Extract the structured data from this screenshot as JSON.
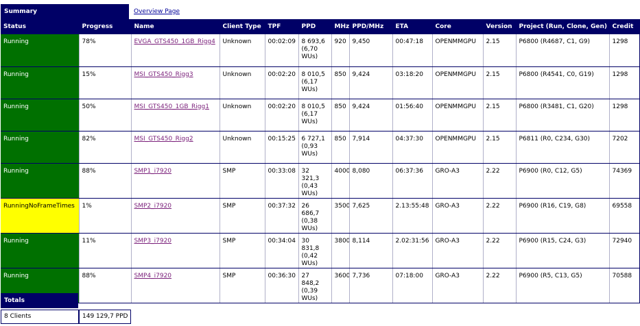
{
  "summary": {
    "title": "Summary",
    "overview_link": "Overview Page"
  },
  "columns": {
    "status": "Status",
    "progress": "Progress",
    "name": "Name",
    "client_type": "Client Type",
    "tpf": "TPF",
    "ppd": "PPD",
    "mhz": "MHz",
    "ppd_mhz": "PPD/MHz",
    "eta": "ETA",
    "core": "Core",
    "version": "Version",
    "project": "Project (Run, Clone, Gen)",
    "credit": "Credit"
  },
  "colors": {
    "header_bg": "#000066",
    "running": "#007000",
    "warning": "#ffff00",
    "link": "#7a1f7a"
  },
  "rows": [
    {
      "status": "Running",
      "status_color": "running",
      "progress": "78%",
      "name": "EVGA_GTS450_1GB_Rigg4",
      "client_type": "Unknown",
      "tpf": "00:02:09",
      "ppd": "8 693,6 (6,70 WUs)",
      "mhz": "920",
      "ppd_mhz": "9,450",
      "eta": "00:47:18",
      "core": "OPENMMGPU",
      "version": "2.15",
      "project": "P6800 (R4687, C1, G9)",
      "credit": "1298"
    },
    {
      "status": "Running",
      "status_color": "running",
      "progress": "15%",
      "name": "MSI_GTS450_Rigg3",
      "client_type": "Unknown",
      "tpf": "00:02:20",
      "ppd": "8 010,5 (6,17 WUs)",
      "mhz": "850",
      "ppd_mhz": "9,424",
      "eta": "03:18:20",
      "core": "OPENMMGPU",
      "version": "2.15",
      "project": "P6800 (R4541, C0, G19)",
      "credit": "1298"
    },
    {
      "status": "Running",
      "status_color": "running",
      "progress": "50%",
      "name": "MSI_GTS450_1GB_Rigg1",
      "client_type": "Unknown",
      "tpf": "00:02:20",
      "ppd": "8 010,5 (6,17 WUs)",
      "mhz": "850",
      "ppd_mhz": "9,424",
      "eta": "01:56:40",
      "core": "OPENMMGPU",
      "version": "2.15",
      "project": "P6800 (R3481, C1, G20)",
      "credit": "1298"
    },
    {
      "status": "Running",
      "status_color": "running",
      "progress": "82%",
      "name": "MSI_GTS450_Rigg2",
      "client_type": "Unknown",
      "tpf": "00:15:25",
      "ppd": "6 727,1 (0,93 WUs)",
      "mhz": "850",
      "ppd_mhz": "7,914",
      "eta": "04:37:30",
      "core": "OPENMMGPU",
      "version": "2.15",
      "project": "P6811 (R0, C234, G30)",
      "credit": "7202"
    },
    {
      "status": "Running",
      "status_color": "running",
      "progress": "88%",
      "name": "SMP1_i7920",
      "client_type": "SMP",
      "tpf": "00:33:08",
      "ppd": "32 321,3 (0,43 WUs)",
      "mhz": "4000",
      "ppd_mhz": "8,080",
      "eta": "06:37:36",
      "core": "GRO-A3",
      "version": "2.22",
      "project": "P6900 (R0, C12, G5)",
      "credit": "74369"
    },
    {
      "status": "RunningNoFrameTimes",
      "status_color": "warning",
      "progress": "1%",
      "name": "SMP2_i7920",
      "client_type": "SMP",
      "tpf": "00:37:32",
      "ppd": "26 686,7 (0,38 WUs)",
      "mhz": "3500",
      "ppd_mhz": "7,625",
      "eta": "2.13:55:48",
      "core": "GRO-A3",
      "version": "2.22",
      "project": "P6900 (R16, C19, G8)",
      "credit": "69558"
    },
    {
      "status": "Running",
      "status_color": "running",
      "progress": "11%",
      "name": "SMP3_i7920",
      "client_type": "SMP",
      "tpf": "00:34:04",
      "ppd": "30 831,8 (0,42 WUs)",
      "mhz": "3800",
      "ppd_mhz": "8,114",
      "eta": "2.02:31:56",
      "core": "GRO-A3",
      "version": "2.22",
      "project": "P6900 (R15, C24, G3)",
      "credit": "72940"
    },
    {
      "status": "Running",
      "status_color": "running",
      "progress": "88%",
      "name": "SMP4_i7920",
      "client_type": "SMP",
      "tpf": "00:36:30",
      "ppd": "27 848,2 (0,39 WUs)",
      "mhz": "3600",
      "ppd_mhz": "7,736",
      "eta": "07:18:00",
      "core": "GRO-A3",
      "version": "2.22",
      "project": "P6900 (R5, C13, G5)",
      "credit": "70588"
    }
  ],
  "totals": {
    "title": "Totals",
    "clients": "8 Clients",
    "ppd": "149 129,7 PPD"
  }
}
